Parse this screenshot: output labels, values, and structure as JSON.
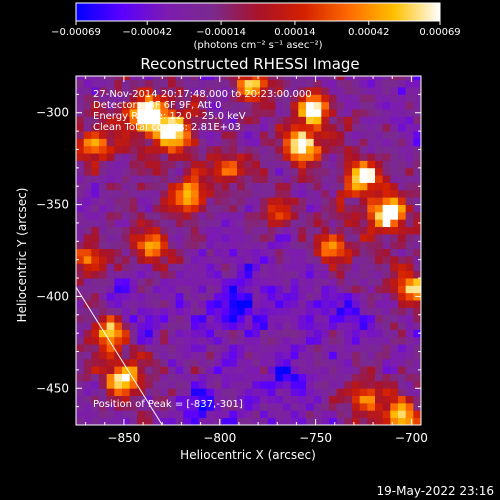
{
  "chart_data": {
    "type": "heatmap",
    "title": "Reconstructed RHESSI Image",
    "xlabel": "Heliocentric X (arcsec)",
    "ylabel": "Heliocentric Y (arcsec)",
    "xlim": [
      -875,
      -695
    ],
    "ylim": [
      -470,
      -280
    ],
    "xticks": [
      -850,
      -800,
      -750,
      -700
    ],
    "xtick_labels": [
      "−850",
      "−800",
      "−750",
      "−700"
    ],
    "yticks": [
      -300,
      -350,
      -400,
      -450
    ],
    "ytick_labels": [
      "−300",
      "−350",
      "−400",
      "−450"
    ],
    "colorbar": {
      "min": -0.00069,
      "max": 0.00069,
      "ticks": [
        -0.00069,
        -0.00042,
        -0.00014,
        0.00014,
        0.00042,
        0.00069
      ],
      "tick_labels": [
        "−0.00069",
        "−0.00042",
        "−0.00014",
        "0.00014",
        "0.00042",
        "0.00069"
      ],
      "unit_label": "(photons cm⁻² s⁻¹ asec⁻²)",
      "colors": [
        "#0000ff",
        "#5a00ff",
        "#7d1bb0",
        "#7a2a8e",
        "#a8132a",
        "#d32000",
        "#ff6a00",
        "#ffc000",
        "#ffffff"
      ]
    },
    "annotations": [
      "27-Nov-2014 20:17:48.000 to 20:23:00.000",
      "Detectors: 3F 6F 9F, Att 0",
      "Energy Range: 12.0 - 25.0 keV",
      "Clean     Total counts: 2.81E+03"
    ],
    "peak_label": "Position of Peak = [-837,-301]",
    "peak": {
      "x": -837,
      "y": -301
    },
    "limb_line": [
      {
        "x": -875,
        "y": -395
      },
      {
        "x": -830,
        "y": -470
      }
    ],
    "bright_regions": [
      {
        "x": -838,
        "y": -301,
        "level": 1.0
      },
      {
        "x": -825,
        "y": -310,
        "level": 0.8
      },
      {
        "x": -783,
        "y": -285,
        "level": 0.75
      },
      {
        "x": -757,
        "y": -318,
        "level": 0.9
      },
      {
        "x": -751,
        "y": -298,
        "level": 0.8
      },
      {
        "x": -712,
        "y": -355,
        "level": 0.85
      },
      {
        "x": -725,
        "y": -335,
        "level": 0.7
      },
      {
        "x": -742,
        "y": -373,
        "level": 0.65
      },
      {
        "x": -700,
        "y": -395,
        "level": 0.7
      },
      {
        "x": -850,
        "y": -445,
        "level": 0.85
      },
      {
        "x": -858,
        "y": -420,
        "level": 0.65
      },
      {
        "x": -866,
        "y": -318,
        "level": 0.6
      },
      {
        "x": -815,
        "y": -345,
        "level": 0.65
      },
      {
        "x": -795,
        "y": -330,
        "level": 0.55
      },
      {
        "x": -835,
        "y": -372,
        "level": 0.6
      },
      {
        "x": -770,
        "y": -355,
        "level": 0.5
      },
      {
        "x": -725,
        "y": -455,
        "level": 0.55
      },
      {
        "x": -705,
        "y": -465,
        "level": 0.7
      },
      {
        "x": -868,
        "y": -380,
        "level": 0.55
      }
    ],
    "dark_regions": [
      {
        "x": -840,
        "y": -415
      },
      {
        "x": -790,
        "y": -405
      },
      {
        "x": -765,
        "y": -445
      },
      {
        "x": -812,
        "y": -460
      },
      {
        "x": -850,
        "y": -395
      },
      {
        "x": -732,
        "y": -410
      }
    ]
  },
  "footer": {
    "timestamp": "19-May-2022 23:16"
  }
}
